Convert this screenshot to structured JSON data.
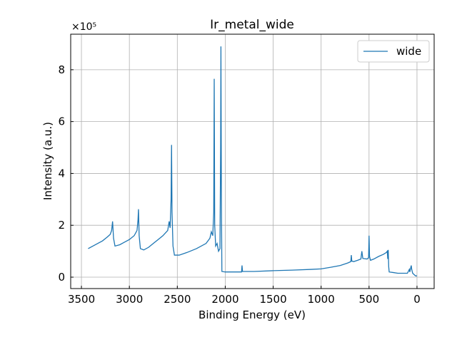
{
  "chart_data": {
    "type": "line",
    "title": "Ir_metal_wide",
    "xlabel": "Binding Energy (eV)",
    "ylabel": "Intensity (a.u.)",
    "y_multiplier": "×10⁵",
    "x": [
      3430,
      3380,
      3330,
      3280,
      3230,
      3200,
      3185,
      3175,
      3165,
      3150,
      3100,
      3050,
      3000,
      2950,
      2920,
      2910,
      2905,
      2898,
      2885,
      2850,
      2800,
      2750,
      2700,
      2650,
      2600,
      2585,
      2575,
      2565,
      2560,
      2555,
      2545,
      2530,
      2480,
      2400,
      2300,
      2200,
      2160,
      2145,
      2130,
      2120,
      2115,
      2110,
      2100,
      2085,
      2080,
      2070,
      2055,
      2048,
      2045,
      2040,
      2035,
      2000,
      1900,
      1830,
      1825,
      1820,
      1700,
      1500,
      1300,
      1100,
      1000,
      900,
      800,
      720,
      690,
      685,
      680,
      660,
      620,
      585,
      575,
      565,
      520,
      505,
      500,
      495,
      485,
      450,
      400,
      350,
      320,
      310,
      305,
      300,
      295,
      290,
      250,
      200,
      150,
      100,
      80,
      75,
      60,
      55,
      45,
      30,
      15,
      0
    ],
    "series": [
      {
        "name": "wide",
        "color": "#1f77b4",
        "values": [
          1.1,
          1.2,
          1.3,
          1.4,
          1.55,
          1.65,
          1.8,
          2.15,
          1.5,
          1.2,
          1.25,
          1.35,
          1.45,
          1.6,
          1.8,
          2.2,
          2.62,
          1.6,
          1.1,
          1.05,
          1.15,
          1.3,
          1.45,
          1.6,
          1.8,
          2.15,
          1.9,
          3.0,
          5.1,
          2.5,
          1.2,
          0.85,
          0.85,
          0.95,
          1.1,
          1.3,
          1.5,
          1.75,
          1.6,
          2.5,
          7.65,
          2.0,
          1.2,
          1.3,
          1.2,
          1.0,
          1.1,
          5.0,
          8.9,
          3.0,
          0.22,
          0.2,
          0.2,
          0.2,
          0.45,
          0.22,
          0.22,
          0.25,
          0.27,
          0.3,
          0.32,
          0.38,
          0.45,
          0.55,
          0.6,
          0.85,
          0.62,
          0.6,
          0.65,
          0.7,
          1.0,
          0.72,
          0.7,
          0.75,
          1.6,
          0.8,
          0.65,
          0.7,
          0.8,
          0.88,
          0.95,
          1.0,
          0.7,
          1.05,
          0.4,
          0.2,
          0.18,
          0.15,
          0.15,
          0.15,
          0.3,
          0.2,
          0.45,
          0.3,
          0.15,
          0.1,
          0.05,
          0.05
        ]
      }
    ],
    "xlim": [
      3612,
      -179
    ],
    "xticks": [
      3500,
      3000,
      2500,
      2000,
      1500,
      1000,
      500,
      0
    ],
    "ylim": [
      -0.44,
      9.37
    ],
    "yticks": [
      0,
      2,
      4,
      6,
      8
    ],
    "grid": true,
    "legend": "upper right"
  }
}
